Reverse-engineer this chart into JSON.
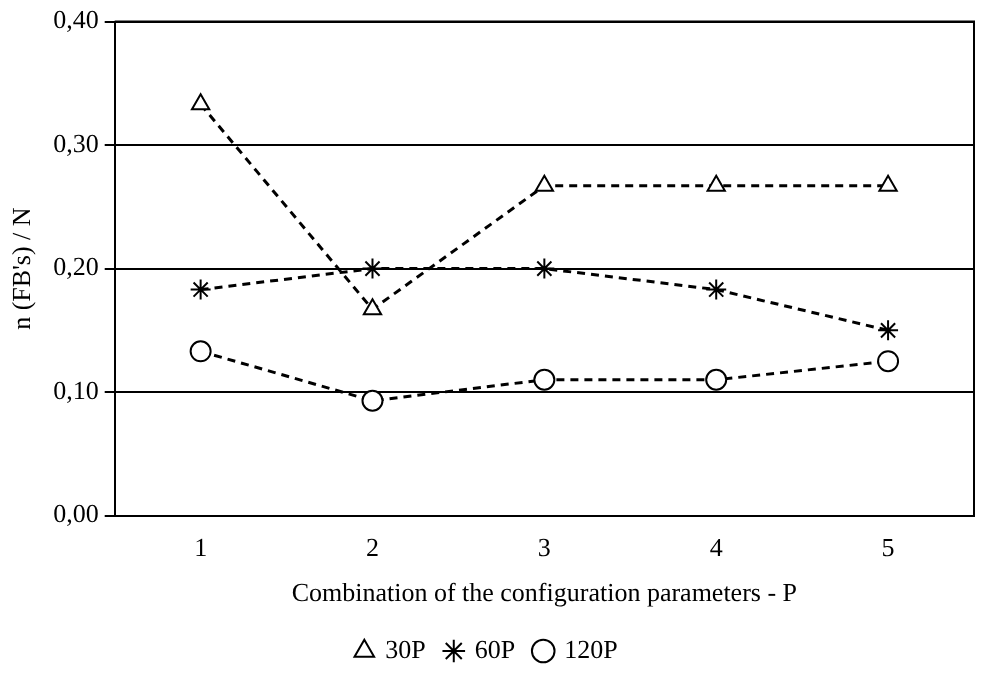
{
  "chart_data": {
    "type": "line",
    "xlabel": "Combination of the configuration parameters - P",
    "ylabel": "n (FB's) / N",
    "categories": [
      "1",
      "2",
      "3",
      "4",
      "5"
    ],
    "series": [
      {
        "name": "30P",
        "color": "#000000",
        "marker": "triangle",
        "values": [
          0.333,
          0.167,
          0.267,
          0.267,
          0.267
        ]
      },
      {
        "name": "60P",
        "color": "#000000",
        "marker": "cross",
        "values": [
          0.183,
          0.2,
          0.2,
          0.183,
          0.15
        ]
      },
      {
        "name": "120P",
        "color": "#000000",
        "marker": "circle",
        "values": [
          0.133,
          0.093,
          0.11,
          0.11,
          0.125
        ]
      }
    ],
    "ylim": [
      0,
      0.4
    ],
    "yticks": [
      {
        "value": 0,
        "label": "0,00"
      },
      {
        "value": 0.1,
        "label": "0,10"
      },
      {
        "value": 0.2,
        "label": "0,20"
      },
      {
        "value": 0.3,
        "label": "0,30"
      },
      {
        "value": 0.4,
        "label": "0,40"
      }
    ],
    "grid": "y",
    "legend": "bottom",
    "line_style": "dashed"
  }
}
